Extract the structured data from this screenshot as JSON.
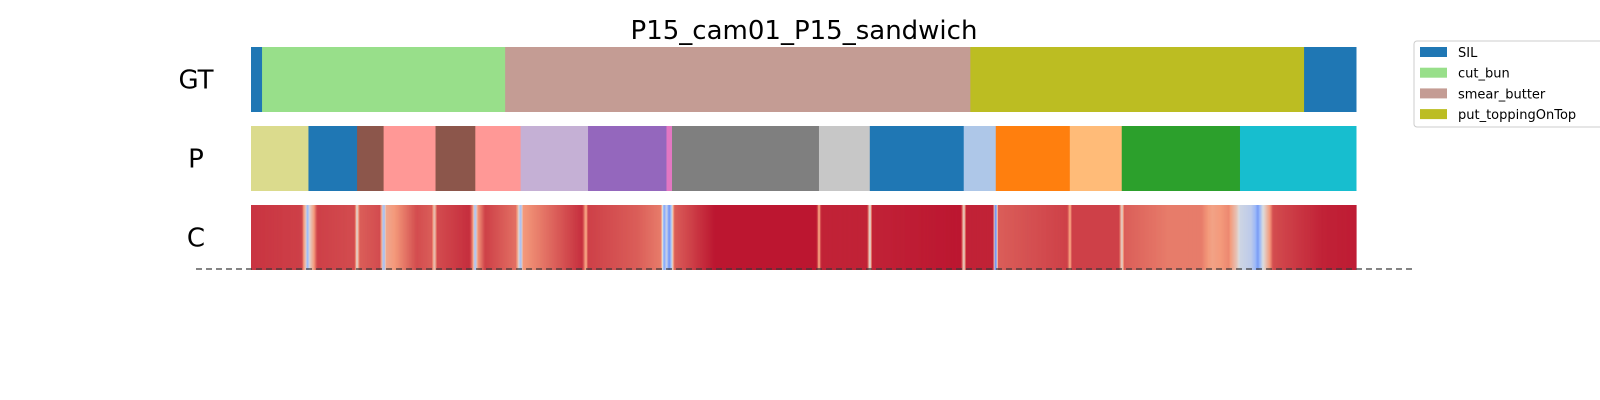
{
  "chart_data": {
    "type": "segmentation_timeline",
    "title": "P15_cam01_P15_sandwich",
    "xlim": [
      0,
      1000
    ],
    "rows": [
      {
        "label": "GT",
        "segments": [
          {
            "start": 0,
            "end": 10,
            "class": "SIL",
            "color": "#1f77b4"
          },
          {
            "start": 10,
            "end": 230,
            "class": "cut_bun",
            "color": "#98df8a"
          },
          {
            "start": 230,
            "end": 651,
            "class": "smear_butter",
            "color": "#c49c94"
          },
          {
            "start": 651,
            "end": 953,
            "class": "put_toppingOnTop",
            "color": "#bcbd22"
          },
          {
            "start": 953,
            "end": 1000,
            "class": "SIL",
            "color": "#1f77b4"
          }
        ]
      },
      {
        "label": "P",
        "segments": [
          {
            "start": 0,
            "end": 52,
            "color": "#dbdb8d"
          },
          {
            "start": 52,
            "end": 96,
            "color": "#1f77b4"
          },
          {
            "start": 96,
            "end": 120,
            "color": "#8c564b"
          },
          {
            "start": 120,
            "end": 167,
            "color": "#ff9896"
          },
          {
            "start": 167,
            "end": 203,
            "color": "#8c564b"
          },
          {
            "start": 203,
            "end": 244,
            "color": "#ff9896"
          },
          {
            "start": 244,
            "end": 305,
            "color": "#c5b0d5"
          },
          {
            "start": 305,
            "end": 376,
            "color": "#9467bd"
          },
          {
            "start": 376,
            "end": 381,
            "color": "#e377c2"
          },
          {
            "start": 381,
            "end": 514,
            "color": "#7f7f7f"
          },
          {
            "start": 514,
            "end": 560,
            "color": "#c7c7c7"
          },
          {
            "start": 560,
            "end": 645,
            "color": "#1f77b4"
          },
          {
            "start": 645,
            "end": 674,
            "color": "#aec7e8"
          },
          {
            "start": 674,
            "end": 741,
            "color": "#ff7f0e"
          },
          {
            "start": 741,
            "end": 788,
            "color": "#ffbb78"
          },
          {
            "start": 788,
            "end": 895,
            "color": "#2ca02c"
          },
          {
            "start": 895,
            "end": 1000,
            "color": "#17becf"
          }
        ]
      },
      {
        "label": "C",
        "colormap": "coolwarm",
        "confidence_points": [
          [
            0,
            0.92
          ],
          [
            46,
            0.9
          ],
          [
            50,
            0.55
          ],
          [
            51,
            0.2
          ],
          [
            53,
            0.55
          ],
          [
            60,
            0.9
          ],
          [
            94,
            0.88
          ],
          [
            96,
            0.5
          ],
          [
            98,
            0.85
          ],
          [
            117,
            0.88
          ],
          [
            119,
            0.55
          ],
          [
            120,
            0.2
          ],
          [
            122,
            0.7
          ],
          [
            150,
            0.88
          ],
          [
            164,
            0.85
          ],
          [
            166,
            0.55
          ],
          [
            168,
            0.88
          ],
          [
            198,
            0.93
          ],
          [
            201,
            0.75
          ],
          [
            203,
            0.25
          ],
          [
            205,
            0.75
          ],
          [
            212,
            0.9
          ],
          [
            240,
            0.82
          ],
          [
            242,
            0.6
          ],
          [
            244,
            0.25
          ],
          [
            246,
            0.75
          ],
          [
            300,
            0.93
          ],
          [
            303,
            0.7
          ],
          [
            305,
            0.9
          ],
          [
            350,
            0.85
          ],
          [
            371,
            0.8
          ],
          [
            373,
            0.4
          ],
          [
            374,
            0.15
          ],
          [
            376,
            0.5
          ],
          [
            378,
            0.15
          ],
          [
            380,
            0.3
          ],
          [
            383,
            0.85
          ],
          [
            420,
            0.97
          ],
          [
            512,
            0.97
          ],
          [
            514,
            0.7
          ],
          [
            516,
            0.95
          ],
          [
            558,
            0.95
          ],
          [
            560,
            0.45
          ],
          [
            562,
            0.95
          ],
          [
            643,
            0.97
          ],
          [
            645,
            0.5
          ],
          [
            647,
            0.95
          ],
          [
            672,
            0.95
          ],
          [
            673,
            0.3
          ],
          [
            674,
            0.05
          ],
          [
            676,
            0.85
          ],
          [
            739,
            0.9
          ],
          [
            741,
            0.7
          ],
          [
            743,
            0.9
          ],
          [
            786,
            0.9
          ],
          [
            788,
            0.5
          ],
          [
            790,
            0.85
          ],
          [
            830,
            0.8
          ],
          [
            860,
            0.8
          ],
          [
            870,
            0.72
          ],
          [
            885,
            0.78
          ],
          [
            892,
            0.6
          ],
          [
            895,
            0.45
          ],
          [
            905,
            0.4
          ],
          [
            909,
            0.3
          ],
          [
            911,
            0.18
          ],
          [
            913,
            0.3
          ],
          [
            916,
            0.5
          ],
          [
            925,
            0.88
          ],
          [
            970,
            0.95
          ],
          [
            1000,
            0.96
          ]
        ]
      }
    ],
    "legend": {
      "placement": "top-right",
      "entries": [
        {
          "label": "SIL",
          "color": "#1f77b4"
        },
        {
          "label": "cut_bun",
          "color": "#98df8a"
        },
        {
          "label": "smear_butter",
          "color": "#c49c94"
        },
        {
          "label": "put_toppingOnTop",
          "color": "#bcbd22"
        }
      ]
    }
  }
}
